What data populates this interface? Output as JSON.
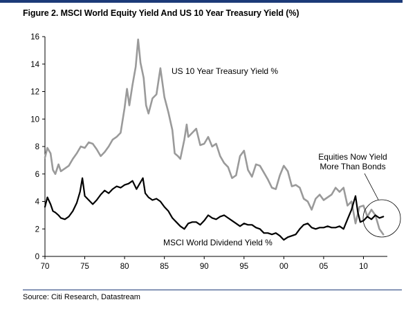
{
  "figure": {
    "title": "Figure 2. MSCI World Equity Yield And US 10 Year Treasury Yield (%)",
    "source": "Source: Citi Research, Datastream"
  },
  "chart_data": {
    "type": "line",
    "title": "Figure 2. MSCI World Equity Yield And US 10 Year Treasury Yield (%)",
    "xlabel": "",
    "ylabel": "",
    "xlim": [
      1970,
      2013
    ],
    "ylim": [
      0,
      16
    ],
    "x_ticks": [
      1970,
      1975,
      1980,
      1985,
      1990,
      1995,
      2000,
      2005,
      2010
    ],
    "x_tick_labels": [
      "70",
      "75",
      "80",
      "85",
      "90",
      "95",
      "00",
      "05",
      "10"
    ],
    "y_ticks": [
      0,
      2,
      4,
      6,
      8,
      10,
      12,
      14,
      16
    ],
    "y_tick_labels": [
      "0",
      "2",
      "4",
      "6",
      "8",
      "10",
      "12",
      "14",
      "16"
    ],
    "grid": false,
    "series": [
      {
        "name": "US 10 Year Treasury Yield %",
        "color": "#9a9a9a",
        "x": [
          1970.0,
          1970.3,
          1970.7,
          1971.0,
          1971.3,
          1971.7,
          1972.0,
          1972.5,
          1973.0,
          1973.5,
          1974.0,
          1974.5,
          1975.0,
          1975.5,
          1976.0,
          1976.5,
          1977.0,
          1977.5,
          1978.0,
          1978.5,
          1979.0,
          1979.5,
          1980.0,
          1980.3,
          1980.6,
          1981.0,
          1981.4,
          1981.7,
          1982.0,
          1982.4,
          1982.7,
          1983.0,
          1983.5,
          1984.0,
          1984.5,
          1985.0,
          1985.5,
          1986.0,
          1986.3,
          1986.7,
          1987.0,
          1987.5,
          1987.8,
          1988.0,
          1988.5,
          1989.0,
          1989.5,
          1990.0,
          1990.5,
          1991.0,
          1991.5,
          1992.0,
          1992.5,
          1993.0,
          1993.5,
          1994.0,
          1994.5,
          1995.0,
          1995.5,
          1996.0,
          1996.5,
          1997.0,
          1997.5,
          1998.0,
          1998.5,
          1999.0,
          1999.5,
          2000.0,
          2000.5,
          2001.0,
          2001.5,
          2002.0,
          2002.5,
          2003.0,
          2003.5,
          2004.0,
          2004.5,
          2005.0,
          2005.5,
          2006.0,
          2006.5,
          2007.0,
          2007.5,
          2008.0,
          2008.5,
          2009.0,
          2009.5,
          2010.0,
          2010.5,
          2011.0,
          2011.5,
          2012.0,
          2012.5
        ],
        "values": [
          7.2,
          7.9,
          7.5,
          6.3,
          6.0,
          6.7,
          6.2,
          6.4,
          6.6,
          7.1,
          7.5,
          8.0,
          7.9,
          8.3,
          8.2,
          7.8,
          7.3,
          7.6,
          8.0,
          8.5,
          8.7,
          9.0,
          10.8,
          12.2,
          11.0,
          12.5,
          13.8,
          15.8,
          14.1,
          13.0,
          11.0,
          10.4,
          11.5,
          11.8,
          13.7,
          11.6,
          10.5,
          9.2,
          7.5,
          7.3,
          7.1,
          8.5,
          9.6,
          8.7,
          9.0,
          9.3,
          8.1,
          8.2,
          8.7,
          8.0,
          8.2,
          7.3,
          6.8,
          6.5,
          5.7,
          5.9,
          7.3,
          7.7,
          6.3,
          5.8,
          6.7,
          6.6,
          6.1,
          5.6,
          5.0,
          4.9,
          5.9,
          6.6,
          6.2,
          5.1,
          5.2,
          5.0,
          4.2,
          4.0,
          3.4,
          4.2,
          4.5,
          4.1,
          4.3,
          4.5,
          5.0,
          4.7,
          5.0,
          3.7,
          4.0,
          2.4,
          3.6,
          3.7,
          2.9,
          3.4,
          3.0,
          2.0,
          1.6
        ]
      },
      {
        "name": "MSCI World Dividend Yield %",
        "color": "#000000",
        "x": [
          1970.0,
          1970.3,
          1970.7,
          1971.0,
          1971.3,
          1971.7,
          1972.0,
          1972.5,
          1973.0,
          1973.5,
          1974.0,
          1974.4,
          1974.7,
          1975.0,
          1975.5,
          1976.0,
          1976.5,
          1977.0,
          1977.5,
          1978.0,
          1978.5,
          1979.0,
          1979.5,
          1980.0,
          1980.5,
          1981.0,
          1981.5,
          1982.0,
          1982.3,
          1982.6,
          1983.0,
          1983.5,
          1984.0,
          1984.5,
          1985.0,
          1985.5,
          1986.0,
          1986.5,
          1987.0,
          1987.5,
          1988.0,
          1988.5,
          1989.0,
          1989.5,
          1990.0,
          1990.5,
          1991.0,
          1991.5,
          1992.0,
          1992.5,
          1993.0,
          1993.5,
          1994.0,
          1994.5,
          1995.0,
          1995.5,
          1996.0,
          1996.5,
          1997.0,
          1997.5,
          1998.0,
          1998.5,
          1999.0,
          1999.5,
          2000.0,
          2000.5,
          2001.0,
          2001.5,
          2002.0,
          2002.5,
          2003.0,
          2003.5,
          2004.0,
          2004.5,
          2005.0,
          2005.5,
          2006.0,
          2006.5,
          2007.0,
          2007.5,
          2008.0,
          2008.5,
          2009.0,
          2009.3,
          2009.6,
          2010.0,
          2010.5,
          2011.0,
          2011.5,
          2012.0,
          2012.5
        ],
        "values": [
          3.6,
          4.3,
          3.8,
          3.3,
          3.2,
          3.0,
          2.8,
          2.7,
          2.9,
          3.3,
          3.9,
          4.7,
          5.7,
          4.4,
          4.1,
          3.8,
          4.1,
          4.5,
          4.8,
          4.6,
          4.9,
          5.1,
          5.0,
          5.2,
          5.3,
          5.5,
          4.9,
          5.4,
          5.7,
          4.6,
          4.3,
          4.1,
          4.2,
          4.0,
          3.6,
          3.3,
          2.8,
          2.5,
          2.2,
          2.0,
          2.4,
          2.5,
          2.5,
          2.3,
          2.6,
          3.0,
          2.8,
          2.7,
          2.9,
          3.0,
          2.8,
          2.6,
          2.4,
          2.2,
          2.4,
          2.3,
          2.3,
          2.1,
          2.0,
          1.7,
          1.7,
          1.6,
          1.7,
          1.5,
          1.2,
          1.4,
          1.5,
          1.6,
          2.0,
          2.3,
          2.4,
          2.1,
          2.0,
          2.1,
          2.1,
          2.2,
          2.1,
          2.1,
          2.2,
          2.0,
          2.7,
          3.4,
          4.4,
          3.2,
          2.5,
          2.6,
          2.9,
          2.7,
          3.0,
          2.8,
          2.9
        ]
      }
    ],
    "annotations": {
      "treasury_label": "US 10 Year Treasury Yield %",
      "dividend_label": "MSCI World Dividend Yield %",
      "callout_line1": "Equities Now Yield",
      "callout_line2": "More Than Bonds"
    }
  }
}
